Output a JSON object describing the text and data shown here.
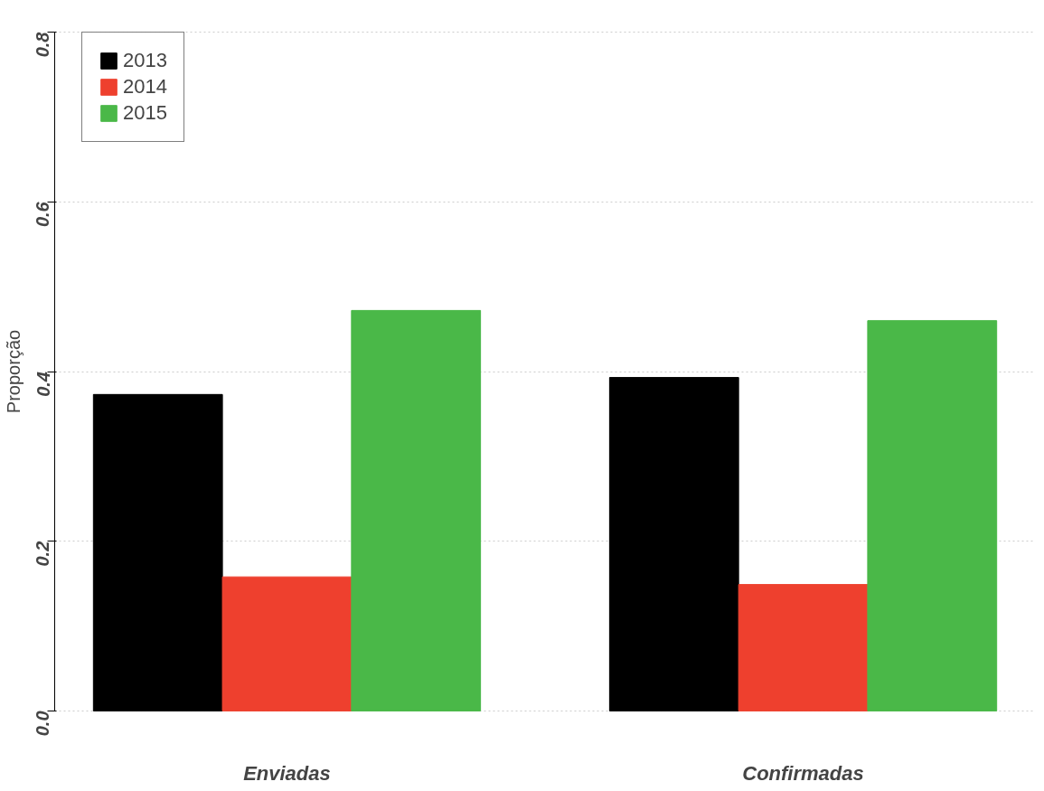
{
  "chart_data": {
    "type": "bar",
    "ylabel": "Proporção",
    "categories": [
      "Enviadas",
      "Confirmadas"
    ],
    "series": [
      {
        "name": "2013",
        "color": "#000000",
        "values": [
          0.373,
          0.393
        ]
      },
      {
        "name": "2014",
        "color": "#ee402e",
        "values": [
          0.158,
          0.149
        ]
      },
      {
        "name": "2015",
        "color": "#4ab848",
        "values": [
          0.472,
          0.46
        ]
      }
    ],
    "ylim": [
      0,
      0.8
    ],
    "yticks": [
      {
        "value": 0,
        "label": "0.0"
      },
      0.2,
      0.4,
      0.6,
      0.8
    ],
    "grid": "y",
    "legend": "top left"
  }
}
